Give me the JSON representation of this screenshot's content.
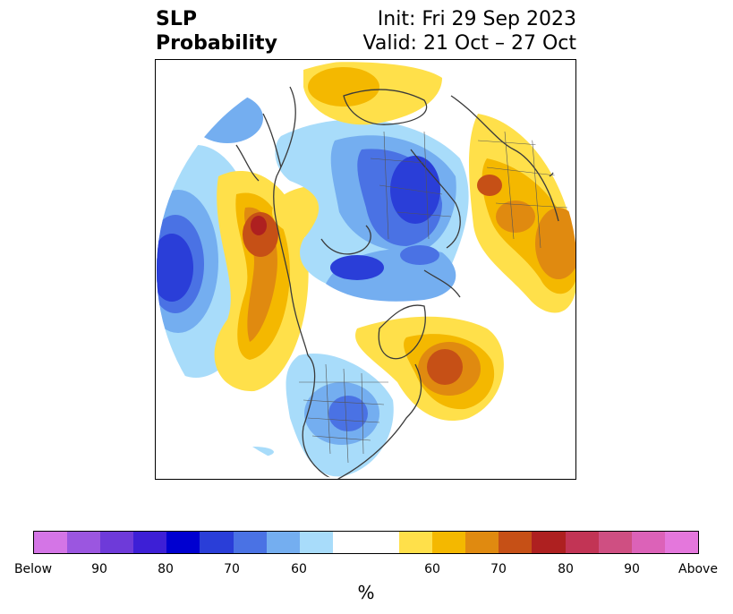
{
  "title": {
    "left_line1": "SLP",
    "left_line2": "Probability",
    "right_line1": "Init: Fri 29 Sep 2023",
    "right_line2": "Valid: 21 Oct – 27 Oct"
  },
  "colorbar": {
    "colors": [
      "#d475e6",
      "#9b56e0",
      "#6e3ad9",
      "#3d1fd6",
      "#0000d0",
      "#2a3ed8",
      "#4a72e4",
      "#74aef0",
      "#a8dcfa",
      "#ffffff",
      "#ffffff",
      "#ffe04a",
      "#f4b800",
      "#e08a10",
      "#c65016",
      "#ae2020",
      "#c23455",
      "#cf4f82",
      "#dc62b8",
      "#e477dc"
    ],
    "labels": [
      "Below",
      "90",
      "80",
      "70",
      "60",
      "60",
      "70",
      "80",
      "90",
      "Above"
    ],
    "unit": "%"
  },
  "map": {
    "projection": "polar-stereographic",
    "colors": {
      "blue_light": "#a8dcfa",
      "blue_mid": "#74aef0",
      "blue_medium": "#4a72e4",
      "blue_strong": "#2a3ed8",
      "yellow_light": "#ffe04a",
      "yellow": "#f4b800",
      "orange": "#e08a10",
      "orange_red": "#c65016",
      "red": "#ae2020"
    }
  }
}
